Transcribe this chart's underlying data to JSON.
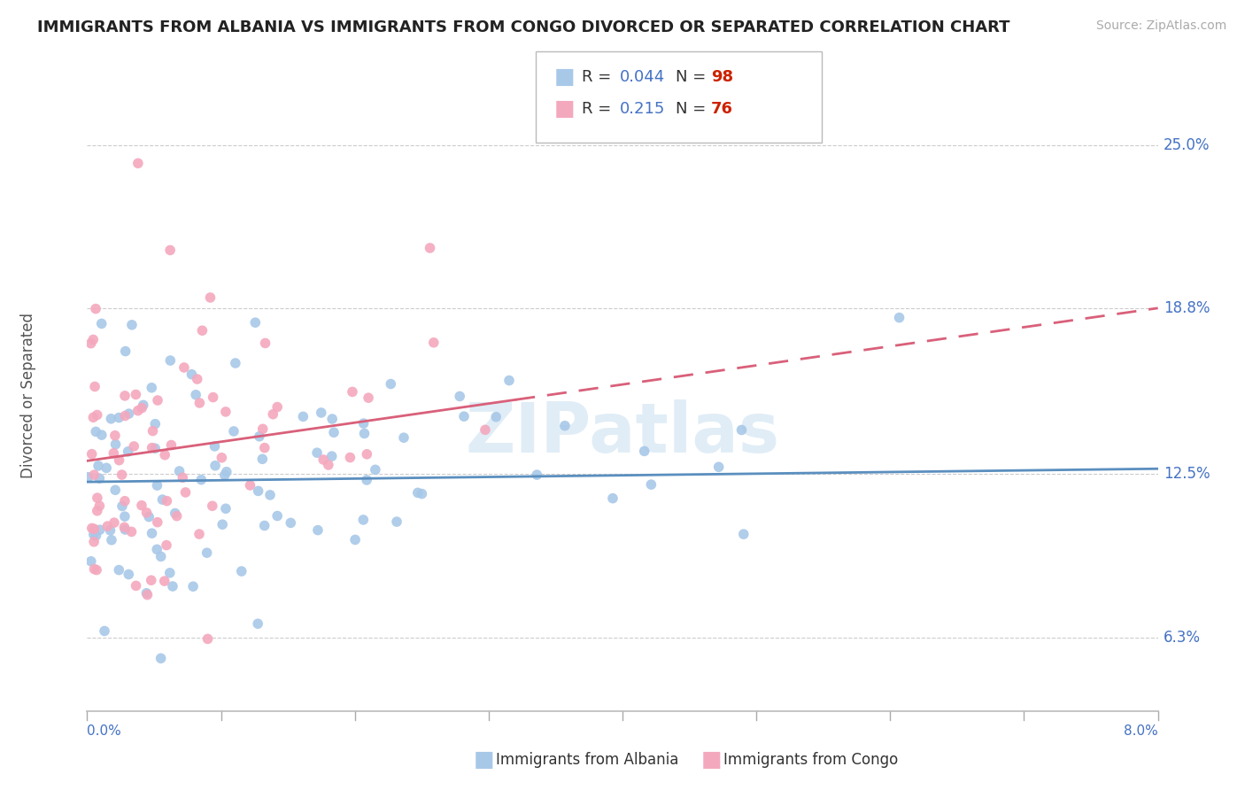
{
  "title": "IMMIGRANTS FROM ALBANIA VS IMMIGRANTS FROM CONGO DIVORCED OR SEPARATED CORRELATION CHART",
  "source": "Source: ZipAtlas.com",
  "ylabel": "Divorced or Separated",
  "ylabel_ticks": [
    6.3,
    12.5,
    18.8,
    25.0
  ],
  "xmin": 0.0,
  "xmax": 8.0,
  "ymin": 3.5,
  "ymax": 27.5,
  "albania_R": 0.044,
  "albania_N": 98,
  "congo_R": 0.215,
  "congo_N": 76,
  "albania_color": "#a8c8e8",
  "congo_color": "#f4a8be",
  "albania_line_color": "#5b8fbf",
  "congo_line_color": "#d9607a",
  "watermark": "ZIPatlas",
  "albania_line_y0": 12.2,
  "albania_line_y1": 12.7,
  "congo_line_y0": 13.0,
  "congo_line_y1": 18.8,
  "congo_solid_xmax": 3.2,
  "seed": 42
}
